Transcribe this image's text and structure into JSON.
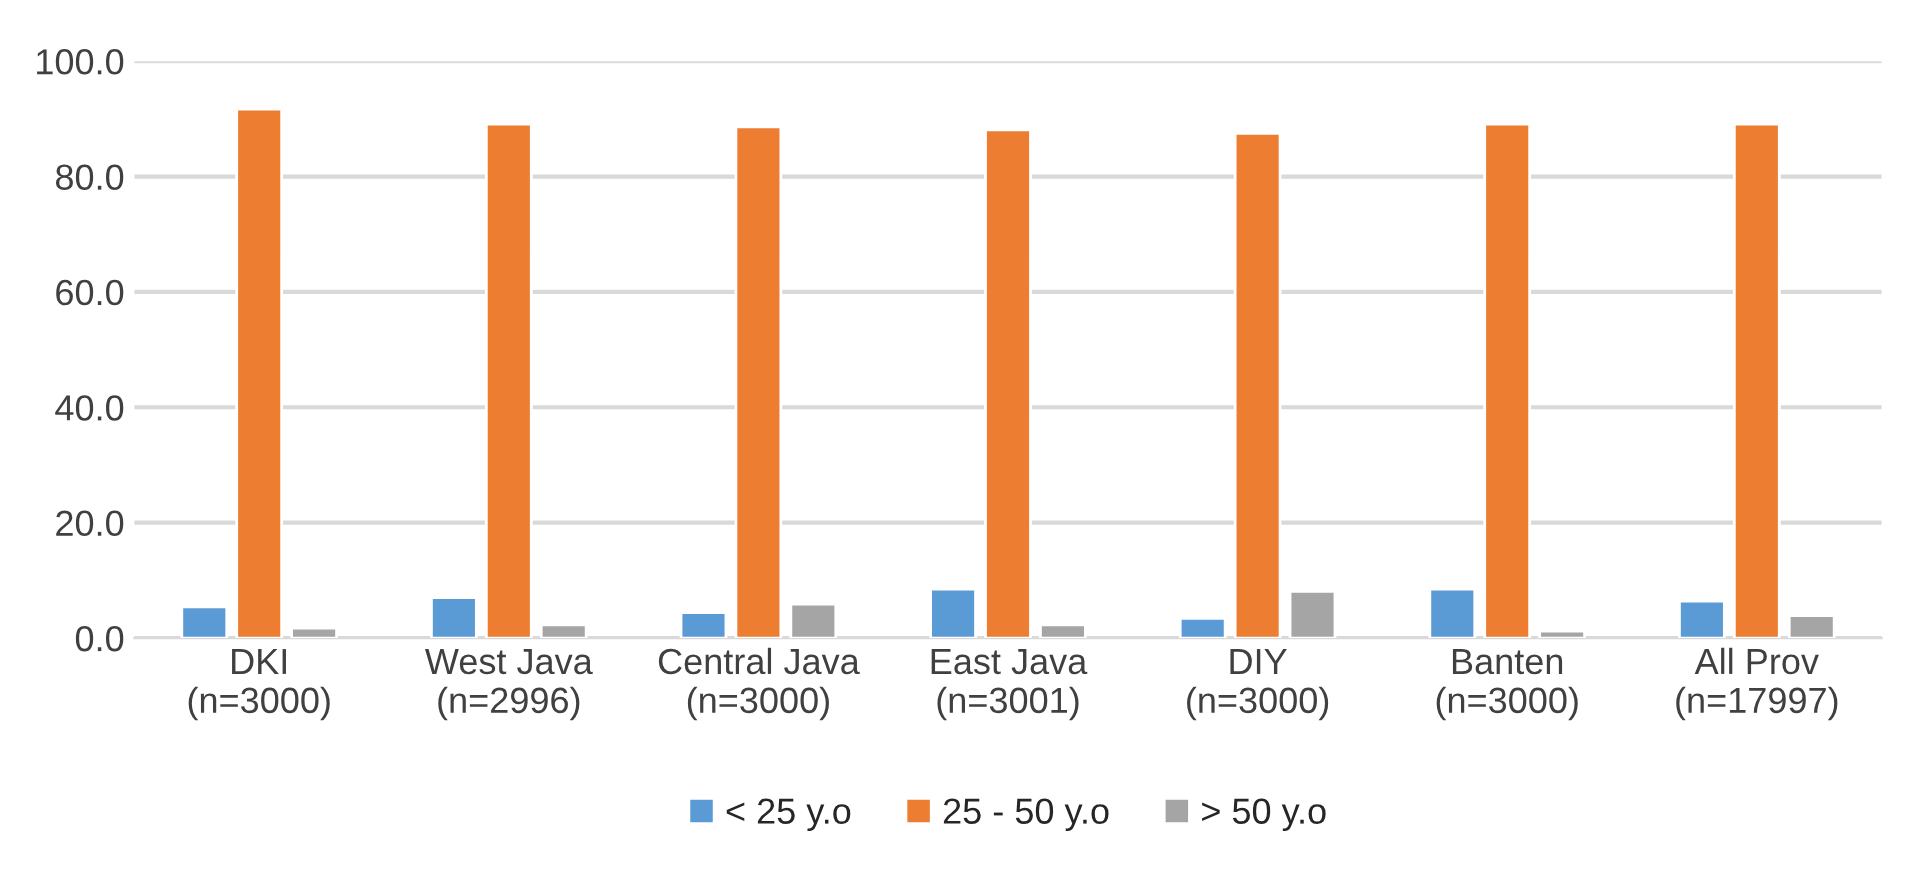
{
  "chart_data": {
    "type": "bar",
    "categories": [
      "DKI\n(n=3000)",
      "West Java\n(n=2996)",
      "Central Java\n(n=3000)",
      "East Java\n(n=3001)",
      "DIY\n(n=3000)",
      "Banten\n(n=3000)",
      "All Prov\n(n=17997)"
    ],
    "series": [
      {
        "name": "< 25 y.o",
        "color": "#5b9bd5",
        "values": [
          5.4,
          7.0,
          4.4,
          8.5,
          3.4,
          8.5,
          6.4
        ]
      },
      {
        "name": "25 - 50 y.o",
        "color": "#ed7d31",
        "values": [
          91.7,
          89.1,
          88.6,
          88.1,
          87.5,
          89.1,
          89.1
        ]
      },
      {
        "name": "> 50 y.o",
        "color": "#a5a5a5",
        "values": [
          1.7,
          2.3,
          5.9,
          2.3,
          8.1,
          1.2,
          3.9
        ]
      }
    ],
    "ylim": [
      0,
      100
    ],
    "yticks": [
      {
        "value": 0,
        "label": "0.0"
      },
      {
        "value": 20,
        "label": "20.0"
      },
      {
        "value": 40,
        "label": "40.0"
      },
      {
        "value": 60,
        "label": "60.0"
      },
      {
        "value": 80,
        "label": "80.0"
      },
      {
        "value": 100,
        "label": "100.0"
      }
    ],
    "grid": "y",
    "legend": "bottom"
  }
}
